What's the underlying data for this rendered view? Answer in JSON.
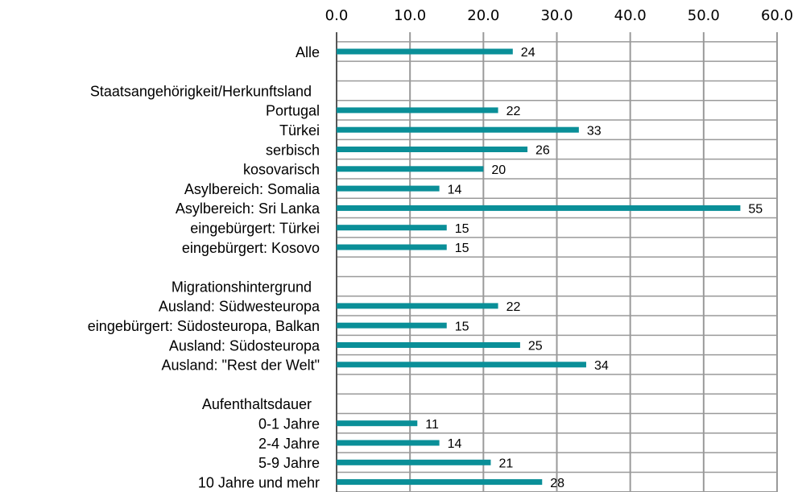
{
  "chart_data": {
    "type": "barh",
    "categories": [
      "Alle",
      null,
      "Staatsangehörigkeit/Herkunftsland",
      "Portugal",
      "Türkei",
      "serbisch",
      "kosovarisch",
      "Asylbereich: Somalia",
      "Asylbereich: Sri Lanka",
      "eingebürgert: Türkei",
      "eingebürgert: Kosovo",
      null,
      "Migrationshintergrund",
      "Ausland: Südwesteuropa",
      "eingebürgert: Südosteuropa, Balkan",
      "Ausland: Südosteuropa",
      "Ausland: \"Rest der Welt\"",
      null,
      "Aufenthaltsdauer",
      "0-1 Jahre",
      "2-4 Jahre",
      "5-9 Jahre",
      "10 Jahre und mehr"
    ],
    "values": [
      24,
      null,
      null,
      22,
      33,
      26,
      20,
      14,
      55,
      15,
      15,
      null,
      null,
      22,
      15,
      25,
      34,
      null,
      null,
      11,
      14,
      21,
      28
    ],
    "color": "#0a8f98",
    "xlim": [
      0,
      60
    ],
    "xticks": [
      {
        "value": 0,
        "label": "0.0"
      },
      {
        "value": 10,
        "label": "10.0"
      },
      {
        "value": 20,
        "label": "20.0"
      },
      {
        "value": 30,
        "label": "30.0"
      },
      {
        "value": 40,
        "label": "40.0"
      },
      {
        "value": 50,
        "label": "50.0"
      },
      {
        "value": 60,
        "label": "60.0"
      }
    ],
    "grid": true
  }
}
